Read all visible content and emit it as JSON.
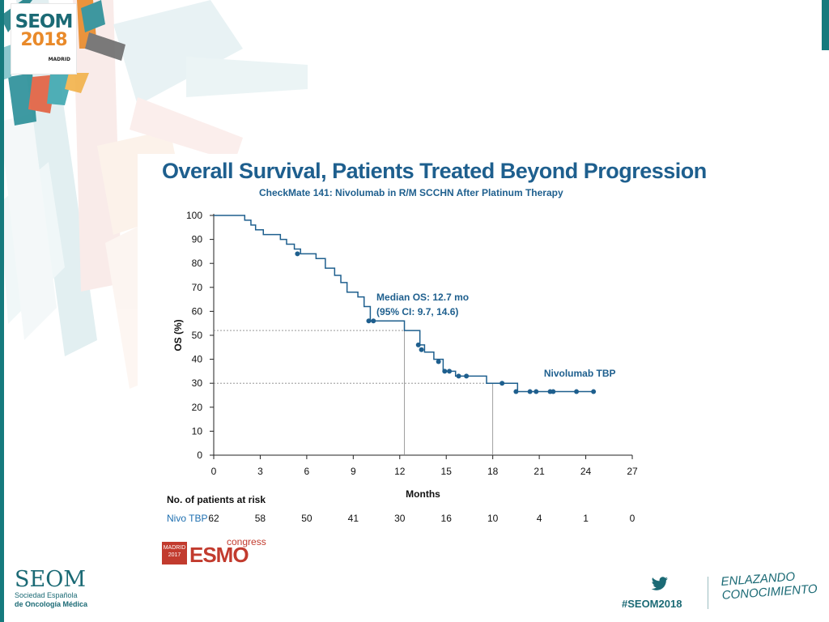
{
  "header": {
    "logo_line1": "SEOM",
    "logo_line2": "2018",
    "logo_line3": "MADRID"
  },
  "slide": {
    "title": "Overall Survival, Patients Treated Beyond Progression",
    "subtitle": "CheckMate 141: Nivolumab in R/M SCCHN After Platinum Therapy",
    "annotation_line1": "Median OS: 12.7 mo",
    "annotation_line2": "(95% CI: 9.7, 14.6)",
    "series_label": "Nivolumab TBP",
    "risk_table_title": "No. of patients at risk",
    "risk_label": "Nivo TBP",
    "esmo_madrid": "MADRID 2017",
    "esmo_name": "ESMO",
    "esmo_congress": "congress"
  },
  "chart_data": {
    "type": "line",
    "title": "Overall Survival, Patients Treated Beyond Progression",
    "subtitle": "CheckMate 141: Nivolumab in R/M SCCHN After Platinum Therapy",
    "xlabel": "Months",
    "ylabel": "OS (%)",
    "xlim": [
      0,
      27
    ],
    "ylim": [
      0,
      100
    ],
    "xticks": [
      0,
      3,
      6,
      9,
      12,
      15,
      18,
      21,
      24,
      27
    ],
    "yticks": [
      0,
      10,
      20,
      30,
      40,
      50,
      60,
      70,
      80,
      90,
      100
    ],
    "series": [
      {
        "name": "Nivolumab TBP",
        "step_x": [
          0,
          2,
          2.4,
          2.7,
          3.2,
          4.3,
          4.7,
          5.2,
          5.6,
          6.6,
          7.2,
          7.8,
          8.2,
          8.6,
          9.3,
          9.7,
          10.1,
          12.3,
          13.3,
          13.6,
          14.2,
          14.8,
          15.6,
          16.1,
          17.6,
          19.6,
          24.6
        ],
        "step_y": [
          100,
          98,
          96,
          94,
          92,
          90,
          88,
          86,
          84,
          82,
          78,
          75,
          72,
          68,
          66,
          62,
          56,
          52,
          46,
          43,
          40,
          35,
          33,
          33,
          30,
          26.5,
          26.5
        ],
        "censored_x": [
          5.4,
          10.0,
          10.3,
          13.2,
          13.4,
          14.5,
          14.9,
          15.2,
          15.8,
          16.3,
          18.6,
          19.5,
          20.4,
          20.8,
          21.7,
          21.9,
          23.4,
          24.5
        ],
        "censored_y": [
          84,
          56,
          56,
          46,
          44,
          39,
          35,
          35,
          33,
          33,
          30,
          26.5,
          26.5,
          26.5,
          26.5,
          26.5,
          26.5,
          26.5
        ]
      }
    ],
    "reference_lines": [
      {
        "type": "median",
        "y": 52,
        "x": 12.3
      },
      {
        "type": "18-month",
        "y": 30,
        "x": 18
      }
    ],
    "annotations": [
      "Median OS: 12.7 mo",
      "(95% CI: 9.7, 14.6)",
      "Nivolumab TBP"
    ],
    "risk_table": {
      "title": "No. of patients at risk",
      "label": "Nivo TBP",
      "months": [
        0,
        3,
        6,
        9,
        12,
        15,
        18,
        21,
        24,
        27
      ],
      "values": [
        62,
        58,
        50,
        41,
        30,
        16,
        10,
        4,
        1,
        0
      ]
    }
  },
  "footer": {
    "seom_name": "SEOM",
    "seom_sub_line1": "Sociedad Española",
    "seom_sub_line2": "de Oncología Médica",
    "hashtag": "#SEOM2018",
    "tagline_line1": "ENLAZANDO",
    "tagline_line2": "CONOCIMIENTO"
  },
  "colors": {
    "teal": "#1b6a75",
    "curve": "#1e5f8e",
    "esmo_red": "#c23b2e",
    "orange": "#e98a2a"
  }
}
